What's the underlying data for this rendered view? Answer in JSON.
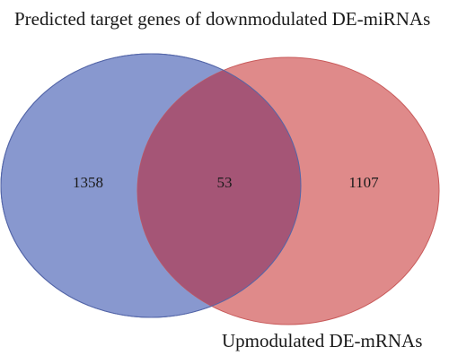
{
  "diagram": {
    "type": "venn",
    "sets": [
      {
        "label": "Predicted target genes of downmodulated DE-miRNAs",
        "only_count": "1358",
        "fill": "#8898cf",
        "stroke": "#5466a8"
      },
      {
        "label": "Upmodulated DE-mRNAs",
        "only_count": "1107",
        "fill": "#df8a8a",
        "stroke": "#c85a5a"
      }
    ],
    "intersection": {
      "count": "53",
      "fill": "#a55576"
    }
  }
}
